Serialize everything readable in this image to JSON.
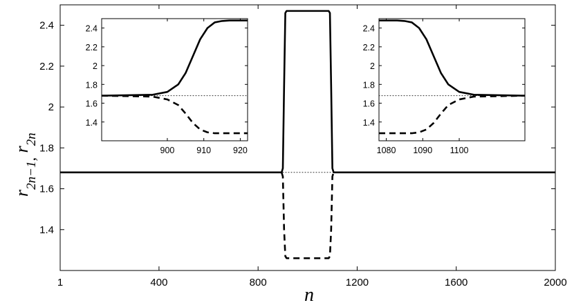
{
  "chart_data": [
    {
      "id": "main",
      "type": "line",
      "xlabel": "n",
      "ylabel_parts": [
        {
          "text": "r",
          "sub": "2n−1",
          "sep": ","
        },
        {
          "text": "r",
          "sub": "2n",
          "sep": ""
        }
      ],
      "xlim": [
        1,
        2000
      ],
      "ylim": [
        1.2,
        2.5
      ],
      "xticks": [
        1,
        400,
        800,
        1200,
        1600,
        2000
      ],
      "yticks": [
        1.4,
        1.6,
        1.8,
        2,
        2.2,
        2.4
      ],
      "ytick_labels": [
        "1.4",
        "1.6",
        "1.8",
        "2",
        "2.2",
        "2.4"
      ],
      "xtick_labels": [
        "1",
        "400",
        "800",
        "1200",
        "1600",
        "2000"
      ],
      "grid": false,
      "series": [
        {
          "style": "solid",
          "color": "#000000",
          "x": [
            1,
            895,
            900,
            905,
            910,
            915,
            1085,
            1090,
            1095,
            1100,
            1105,
            2000
          ],
          "y": [
            1.68,
            1.68,
            1.7,
            2.1,
            2.46,
            2.47,
            2.47,
            2.46,
            2.1,
            1.7,
            1.68,
            1.68
          ]
        },
        {
          "style": "dashed",
          "color": "#000000",
          "x": [
            895,
            900,
            905,
            910,
            915,
            1085,
            1090,
            1095,
            1100,
            1105
          ],
          "y": [
            1.68,
            1.66,
            1.4,
            1.27,
            1.26,
            1.26,
            1.27,
            1.4,
            1.66,
            1.68
          ]
        },
        {
          "style": "dotted",
          "color": "#000000",
          "x": [
            900,
            1100
          ],
          "y": [
            1.68,
            1.68
          ]
        }
      ]
    },
    {
      "id": "inset-left",
      "type": "line",
      "xlim": [
        882,
        922
      ],
      "ylim": [
        1.2,
        2.5
      ],
      "xticks": [
        900,
        910,
        920
      ],
      "xtick_labels": [
        "900",
        "910",
        "920"
      ],
      "yticks": [
        1.4,
        1.6,
        1.8,
        2,
        2.2,
        2.4
      ],
      "ytick_labels": [
        "1.4",
        "1.6",
        "1.8",
        "2",
        "2.2",
        "2.4"
      ],
      "grid": false,
      "series": [
        {
          "style": "solid",
          "color": "#000000",
          "x": [
            882,
            896,
            900,
            903,
            905,
            907,
            909,
            911,
            913,
            915,
            917,
            922
          ],
          "y": [
            1.68,
            1.69,
            1.72,
            1.8,
            1.92,
            2.1,
            2.28,
            2.4,
            2.46,
            2.475,
            2.48,
            2.48
          ]
        },
        {
          "style": "dashed",
          "color": "#000000",
          "x": [
            882,
            896,
            900,
            903,
            905,
            907,
            909,
            911,
            913,
            915,
            917,
            922
          ],
          "y": [
            1.68,
            1.67,
            1.64,
            1.58,
            1.49,
            1.39,
            1.32,
            1.29,
            1.28,
            1.28,
            1.28,
            1.28
          ]
        },
        {
          "style": "dotted",
          "color": "#000000",
          "x": [
            882,
            922
          ],
          "y": [
            1.68,
            1.68
          ]
        }
      ]
    },
    {
      "id": "inset-right",
      "type": "line",
      "xlim": [
        1078,
        1118
      ],
      "ylim": [
        1.2,
        2.5
      ],
      "xticks": [
        1080,
        1090,
        1100
      ],
      "xtick_labels": [
        "1080",
        "1090",
        "1100"
      ],
      "yticks": [
        1.4,
        1.6,
        1.8,
        2,
        2.2,
        2.4
      ],
      "ytick_labels": [
        "1.4",
        "1.6",
        "1.8",
        "2",
        "2.2",
        "2.4"
      ],
      "grid": false,
      "series": [
        {
          "style": "solid",
          "color": "#000000",
          "x": [
            1078,
            1083,
            1085,
            1087,
            1089,
            1091,
            1093,
            1095,
            1097,
            1100,
            1104,
            1118
          ],
          "y": [
            2.48,
            2.48,
            2.475,
            2.46,
            2.4,
            2.28,
            2.1,
            1.92,
            1.8,
            1.72,
            1.69,
            1.68
          ]
        },
        {
          "style": "dashed",
          "color": "#000000",
          "x": [
            1078,
            1083,
            1085,
            1087,
            1089,
            1091,
            1093,
            1095,
            1097,
            1100,
            1104,
            1118
          ],
          "y": [
            1.28,
            1.28,
            1.28,
            1.28,
            1.29,
            1.32,
            1.39,
            1.49,
            1.58,
            1.64,
            1.67,
            1.68
          ]
        },
        {
          "style": "dotted",
          "color": "#000000",
          "x": [
            1078,
            1118
          ],
          "y": [
            1.68,
            1.68
          ]
        }
      ]
    }
  ]
}
